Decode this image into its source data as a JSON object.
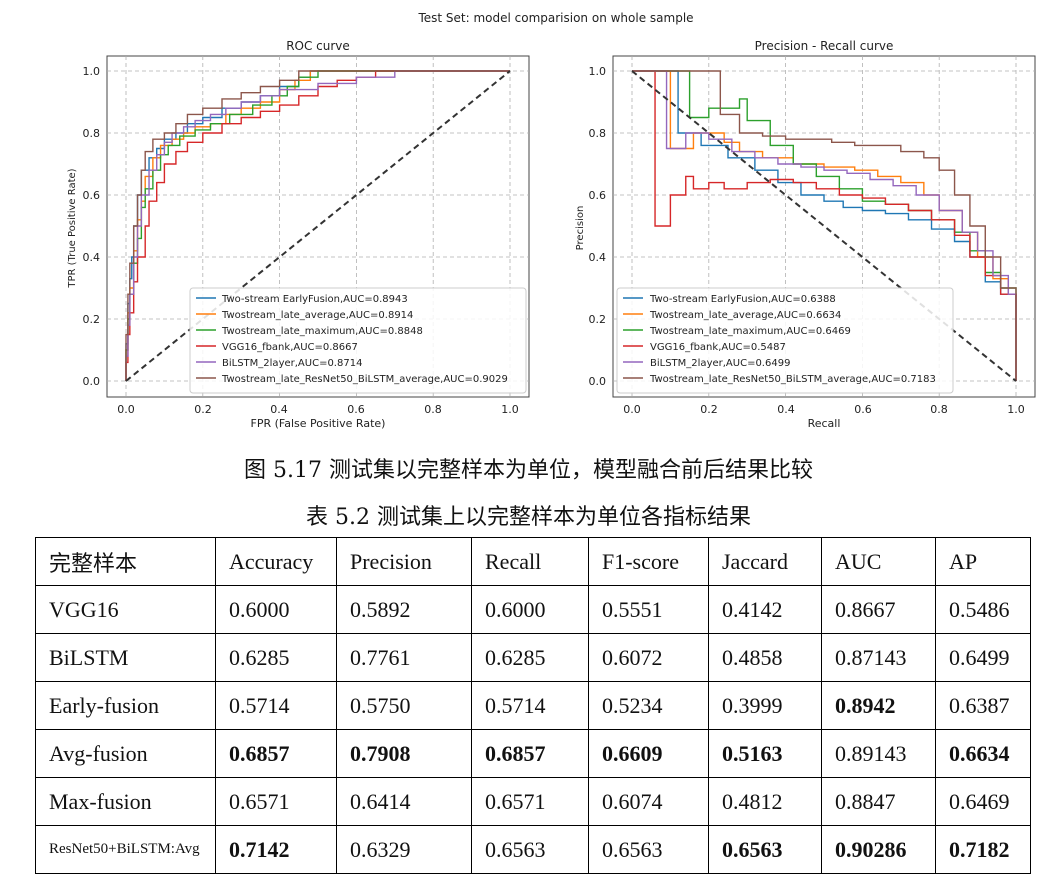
{
  "figure": {
    "suptitle": "Test Set: model comparision on whole sample",
    "colors": [
      "#1f77b4",
      "#ff7f0e",
      "#2ca02c",
      "#d62728",
      "#9467bd",
      "#8c564b"
    ],
    "roc": {
      "title": "ROC curve",
      "xlabel": "FPR (False Positive Rate)",
      "ylabel": "TPR (True Positive Rate)",
      "xticks": [
        "0.0",
        "0.2",
        "0.4",
        "0.6",
        "0.8",
        "1.0"
      ],
      "yticks": [
        "0.0",
        "0.2",
        "0.4",
        "0.6",
        "0.8",
        "1.0"
      ],
      "legend": [
        "Two-stream EarlyFusion,AUC=0.8943",
        "Twostream_late_average,AUC=0.8914",
        "Twostream_late_maximum,AUC=0.8848",
        "VGG16_fbank,AUC=0.8667",
        "BiLSTM_2layer,AUC=0.8714",
        "Twostream_late_ResNet50_BiLSTM_average,AUC=0.9029"
      ]
    },
    "pr": {
      "title": "Precision - Recall curve",
      "xlabel": "Recall",
      "ylabel": "Precision",
      "xticks": [
        "0.0",
        "0.2",
        "0.4",
        "0.6",
        "0.8",
        "1.0"
      ],
      "yticks": [
        "0.0",
        "0.2",
        "0.4",
        "0.6",
        "0.8",
        "1.0"
      ],
      "legend": [
        "Two-stream EarlyFusion,AUC=0.6388",
        "Twostream_late_average,AUC=0.6634",
        "Twostream_late_maximum,AUC=0.6469",
        "VGG16_fbank,AUC=0.5487",
        "BiLSTM_2layer,AUC=0.6499",
        "Twostream_late_ResNet50_BiLSTM_average,AUC=0.7183"
      ]
    }
  },
  "chart_data": [
    {
      "type": "line",
      "title": "ROC curve",
      "xlabel": "FPR (False Positive Rate)",
      "ylabel": "TPR (True Positive Rate)",
      "xlim": [
        0,
        1
      ],
      "ylim": [
        0,
        1
      ],
      "grid": true,
      "legend_position": "lower-right",
      "series": [
        {
          "name": "Two-stream EarlyFusion,AUC=0.8943",
          "x": [
            0,
            0.005,
            0.01,
            0.015,
            0.02,
            0.03,
            0.04,
            0.06,
            0.08,
            0.1,
            0.13,
            0.16,
            0.2,
            0.25,
            0.3,
            0.35,
            0.4,
            0.45,
            0.48,
            0.52,
            1
          ],
          "y": [
            0,
            0.12,
            0.25,
            0.33,
            0.4,
            0.5,
            0.6,
            0.68,
            0.72,
            0.75,
            0.78,
            0.8,
            0.83,
            0.85,
            0.88,
            0.9,
            0.92,
            0.95,
            0.98,
            1,
            1
          ]
        },
        {
          "name": "Twostream_late_average,AUC=0.8914",
          "x": [
            0,
            0.005,
            0.01,
            0.02,
            0.03,
            0.04,
            0.05,
            0.07,
            0.09,
            0.12,
            0.15,
            0.18,
            0.22,
            0.26,
            0.3,
            0.35,
            0.4,
            0.44,
            0.48,
            0.52,
            1
          ],
          "y": [
            0,
            0.1,
            0.22,
            0.3,
            0.42,
            0.52,
            0.58,
            0.66,
            0.72,
            0.76,
            0.78,
            0.8,
            0.82,
            0.83,
            0.86,
            0.88,
            0.9,
            0.94,
            0.97,
            1,
            1
          ]
        },
        {
          "name": "Twostream_late_maximum,AUC=0.8848",
          "x": [
            0,
            0.005,
            0.01,
            0.02,
            0.03,
            0.04,
            0.05,
            0.07,
            0.09,
            0.11,
            0.14,
            0.18,
            0.22,
            0.27,
            0.33,
            0.38,
            0.42,
            0.45,
            0.5,
            0.53,
            1
          ],
          "y": [
            0,
            0.1,
            0.2,
            0.28,
            0.38,
            0.46,
            0.56,
            0.62,
            0.68,
            0.73,
            0.76,
            0.79,
            0.81,
            0.83,
            0.86,
            0.89,
            0.92,
            0.95,
            0.98,
            1,
            1
          ]
        },
        {
          "name": "VGG16_fbank,AUC=0.8667",
          "x": [
            0,
            0.005,
            0.01,
            0.02,
            0.03,
            0.05,
            0.06,
            0.08,
            0.1,
            0.13,
            0.16,
            0.2,
            0.25,
            0.3,
            0.35,
            0.4,
            0.45,
            0.5,
            0.55,
            0.6,
            0.65,
            0.7,
            1
          ],
          "y": [
            0,
            0.06,
            0.15,
            0.22,
            0.32,
            0.4,
            0.5,
            0.58,
            0.64,
            0.7,
            0.74,
            0.77,
            0.8,
            0.83,
            0.85,
            0.87,
            0.89,
            0.92,
            0.95,
            0.97,
            0.98,
            1,
            1
          ]
        },
        {
          "name": "BiLSTM_2layer,AUC=0.8714",
          "x": [
            0,
            0.005,
            0.01,
            0.02,
            0.03,
            0.04,
            0.06,
            0.08,
            0.1,
            0.12,
            0.15,
            0.18,
            0.22,
            0.26,
            0.3,
            0.35,
            0.4,
            0.5,
            0.6,
            0.7,
            0.72,
            1
          ],
          "y": [
            0,
            0.08,
            0.18,
            0.28,
            0.4,
            0.5,
            0.6,
            0.68,
            0.73,
            0.77,
            0.8,
            0.82,
            0.84,
            0.86,
            0.88,
            0.9,
            0.92,
            0.94,
            0.96,
            0.98,
            1,
            1
          ]
        },
        {
          "name": "Twostream_late_ResNet50_BiLSTM_average,AUC=0.9029",
          "x": [
            0,
            0.005,
            0.01,
            0.02,
            0.03,
            0.04,
            0.05,
            0.07,
            0.1,
            0.13,
            0.16,
            0.2,
            0.25,
            0.3,
            0.35,
            0.4,
            0.45,
            0.5,
            1
          ],
          "y": [
            0,
            0.15,
            0.28,
            0.38,
            0.5,
            0.6,
            0.68,
            0.74,
            0.78,
            0.8,
            0.83,
            0.86,
            0.88,
            0.91,
            0.93,
            0.95,
            0.97,
            1,
            1
          ]
        },
        {
          "name": "",
          "x": [
            0,
            1
          ],
          "y": [
            0,
            1
          ],
          "style": "dashed"
        }
      ]
    },
    {
      "type": "line",
      "title": "Precision - Recall curve",
      "xlabel": "Recall",
      "ylabel": "Precision",
      "xlim": [
        0,
        1
      ],
      "ylim": [
        0,
        1
      ],
      "grid": true,
      "legend_position": "lower-left",
      "series": [
        {
          "name": "Two-stream EarlyFusion,AUC=0.6388",
          "x": [
            0,
            0.12,
            0.12,
            0.18,
            0.25,
            0.32,
            0.38,
            0.44,
            0.5,
            0.55,
            0.6,
            0.66,
            0.72,
            0.78,
            0.84,
            0.88,
            0.92,
            0.96,
            1,
            1
          ],
          "y": [
            1,
            1,
            0.8,
            0.76,
            0.72,
            0.68,
            0.64,
            0.6,
            0.58,
            0.56,
            0.55,
            0.54,
            0.52,
            0.49,
            0.45,
            0.4,
            0.32,
            0.28,
            0.25,
            0
          ]
        },
        {
          "name": "Twostream_late_average,AUC=0.6634",
          "x": [
            0,
            0.1,
            0.1,
            0.16,
            0.24,
            0.28,
            0.34,
            0.42,
            0.5,
            0.58,
            0.64,
            0.7,
            0.76,
            0.8,
            0.86,
            0.9,
            0.94,
            0.98,
            1,
            1
          ],
          "y": [
            1,
            1,
            0.75,
            0.8,
            0.77,
            0.74,
            0.72,
            0.7,
            0.69,
            0.68,
            0.66,
            0.64,
            0.6,
            0.55,
            0.48,
            0.4,
            0.33,
            0.28,
            0.25,
            0
          ]
        },
        {
          "name": "Twostream_late_maximum,AUC=0.6469",
          "x": [
            0,
            0.15,
            0.15,
            0.2,
            0.28,
            0.3,
            0.36,
            0.42,
            0.48,
            0.54,
            0.6,
            0.66,
            0.72,
            0.78,
            0.84,
            0.88,
            0.92,
            0.96,
            1,
            1
          ],
          "y": [
            1,
            1,
            0.85,
            0.88,
            0.91,
            0.84,
            0.76,
            0.7,
            0.66,
            0.62,
            0.58,
            0.57,
            0.55,
            0.52,
            0.48,
            0.42,
            0.35,
            0.3,
            0.26,
            0
          ]
        },
        {
          "name": "VGG16_fbank,AUC=0.5487",
          "x": [
            0,
            0.06,
            0.06,
            0.1,
            0.14,
            0.16,
            0.2,
            0.24,
            0.3,
            0.36,
            0.42,
            0.48,
            0.54,
            0.6,
            0.66,
            0.72,
            0.78,
            0.84,
            0.88,
            0.92,
            0.96,
            1,
            1
          ],
          "y": [
            1,
            1,
            0.5,
            0.6,
            0.66,
            0.62,
            0.64,
            0.62,
            0.64,
            0.65,
            0.64,
            0.62,
            0.6,
            0.59,
            0.57,
            0.55,
            0.52,
            0.47,
            0.4,
            0.34,
            0.28,
            0.24,
            0
          ]
        },
        {
          "name": "BiLSTM_2layer,AUC=0.6499",
          "x": [
            0,
            0.09,
            0.09,
            0.14,
            0.2,
            0.26,
            0.32,
            0.38,
            0.44,
            0.5,
            0.56,
            0.62,
            0.68,
            0.74,
            0.8,
            0.86,
            0.9,
            0.94,
            0.98,
            1,
            1
          ],
          "y": [
            1,
            1,
            0.75,
            0.8,
            0.78,
            0.74,
            0.72,
            0.7,
            0.69,
            0.68,
            0.67,
            0.65,
            0.63,
            0.6,
            0.55,
            0.48,
            0.42,
            0.34,
            0.28,
            0.24,
            0
          ]
        },
        {
          "name": "Twostream_late_ResNet50_BiLSTM_average,AUC=0.7183",
          "x": [
            0,
            0.23,
            0.23,
            0.28,
            0.34,
            0.4,
            0.46,
            0.52,
            0.58,
            0.64,
            0.7,
            0.76,
            0.8,
            0.84,
            0.88,
            0.92,
            0.96,
            1,
            1
          ],
          "y": [
            1,
            1,
            0.86,
            0.8,
            0.79,
            0.78,
            0.78,
            0.77,
            0.76,
            0.76,
            0.74,
            0.72,
            0.68,
            0.6,
            0.5,
            0.4,
            0.3,
            0.24,
            0
          ]
        },
        {
          "name": "",
          "x": [
            0,
            1
          ],
          "y": [
            1,
            0
          ],
          "style": "dashed"
        }
      ]
    }
  ],
  "captions": {
    "figure": "图 5.17  测试集以完整样本为单位，模型融合前后结果比较",
    "table": "表 5.2  测试集上以完整样本为单位各指标结果"
  },
  "table": {
    "headers": [
      "完整样本",
      "Accuracy",
      "Precision",
      "Recall",
      "F1-score",
      "Jaccard",
      "AUC",
      "AP"
    ],
    "rows": [
      [
        "VGG16",
        "0.6000",
        "0.5892",
        "0.6000",
        "0.5551",
        "0.4142",
        "0.8667",
        "0.5486"
      ],
      [
        "BiLSTM",
        "0.6285",
        "0.7761",
        "0.6285",
        "0.6072",
        "0.4858",
        "0.87143",
        "0.6499"
      ],
      [
        "Early-fusion",
        "0.5714",
        "0.5750",
        "0.5714",
        "0.5234",
        "0.3999",
        "0.8942",
        "0.6387"
      ],
      [
        "Avg-fusion",
        "0.6857",
        "0.7908",
        "0.6857",
        "0.6609",
        "0.5163",
        "0.89143",
        "0.6634"
      ],
      [
        "Max-fusion",
        "0.6571",
        "0.6414",
        "0.6571",
        "0.6074",
        "0.4812",
        "0.8847",
        "0.6469"
      ],
      [
        "ResNet50+BiLSTM:Avg",
        "0.7142",
        "0.6329",
        "0.6563",
        "0.6563",
        "0.6563",
        "0.90286",
        "0.7182"
      ]
    ]
  }
}
